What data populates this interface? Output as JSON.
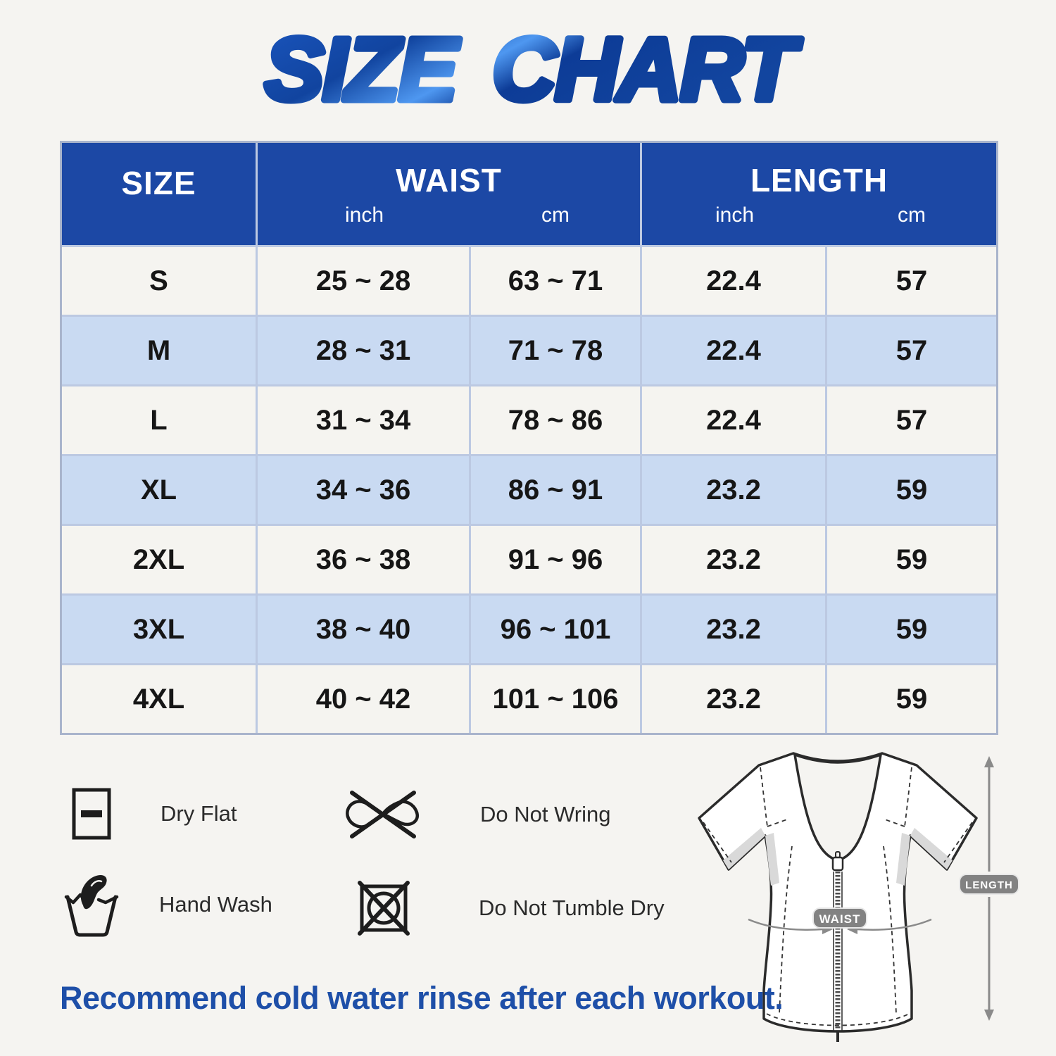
{
  "title": "SIZE CHART",
  "table": {
    "columns": [
      "SIZE",
      "WAIST",
      "LENGTH"
    ],
    "sub_units": {
      "inch": "inch",
      "cm": "cm"
    },
    "rows": [
      {
        "size": "S",
        "waist_inch": "25 ~ 28",
        "waist_cm": "63 ~ 71",
        "length_inch": "22.4",
        "length_cm": "57"
      },
      {
        "size": "M",
        "waist_inch": "28 ~ 31",
        "waist_cm": "71 ~ 78",
        "length_inch": "22.4",
        "length_cm": "57"
      },
      {
        "size": "L",
        "waist_inch": "31 ~ 34",
        "waist_cm": "78 ~ 86",
        "length_inch": "22.4",
        "length_cm": "57"
      },
      {
        "size": "XL",
        "waist_inch": "34 ~ 36",
        "waist_cm": "86 ~ 91",
        "length_inch": "23.2",
        "length_cm": "59"
      },
      {
        "size": "2XL",
        "waist_inch": "36 ~ 38",
        "waist_cm": "91 ~ 96",
        "length_inch": "23.2",
        "length_cm": "59"
      },
      {
        "size": "3XL",
        "waist_inch": "38 ~ 40",
        "waist_cm": "96 ~ 101",
        "length_inch": "23.2",
        "length_cm": "59"
      },
      {
        "size": "4XL",
        "waist_inch": "40 ~ 42",
        "waist_cm": "101 ~ 106",
        "length_inch": "23.2",
        "length_cm": "59"
      }
    ]
  },
  "care_instructions": [
    {
      "icon": "dry-flat-icon",
      "label": "Dry Flat"
    },
    {
      "icon": "do-not-wring-icon",
      "label": "Do Not Wring"
    },
    {
      "icon": "hand-wash-icon",
      "label": "Hand Wash"
    },
    {
      "icon": "do-not-tumble-dry-icon",
      "label": "Do Not Tumble Dry"
    }
  ],
  "diagram": {
    "waist_badge": "WAIST",
    "length_badge": "LENGTH"
  },
  "footer_note": "Recommend cold water rinse after each workout.",
  "colors": {
    "header_blue": "#1c48a5",
    "row_light": "#f5f4f0",
    "row_blue": "#c9daf2",
    "table_border": "#a9b4cc",
    "title_blue_dark": "#0d3c97",
    "title_blue_light": "#4e97f0",
    "footer_blue": "#1e4fa8",
    "badge_gray": "#828282",
    "background": "#f5f4f1"
  }
}
